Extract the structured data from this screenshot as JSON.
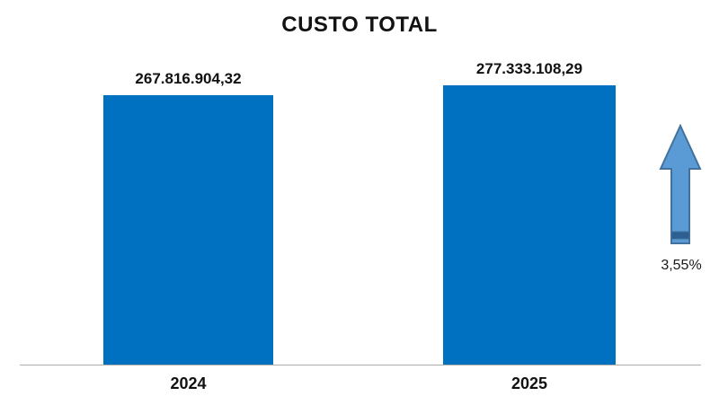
{
  "chart_data": {
    "type": "bar",
    "title": "CUSTO TOTAL",
    "categories": [
      "2024",
      "2025"
    ],
    "values": [
      267816904.32,
      277333108.29
    ],
    "value_labels": [
      "267.816.904,32",
      "277.333.108,29"
    ],
    "xlabel": "",
    "ylabel": "",
    "ylim": [
      0,
      277333108.29
    ],
    "gridlines": false,
    "legend_position": "none",
    "bar_color": "#0070C0",
    "axis_line_color": "#ADADAD"
  },
  "annotation": {
    "icon": "up-arrow-icon",
    "percent_label": "3,55%",
    "arrow_fill": "#5B9BD5",
    "arrow_border": "#41719C",
    "arrow_band": "#2E5F93"
  }
}
